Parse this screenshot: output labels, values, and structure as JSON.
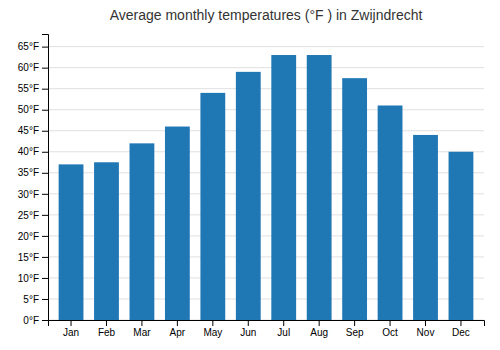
{
  "chart_data": {
    "type": "bar",
    "title": "Average monthly temperatures (°F ) in Zwijndrecht",
    "categories": [
      "Jan",
      "Feb",
      "Mar",
      "Apr",
      "May",
      "Jun",
      "Jul",
      "Aug",
      "Sep",
      "Oct",
      "Nov",
      "Dec"
    ],
    "values": [
      37,
      37.5,
      42,
      46,
      54,
      59,
      63,
      63,
      57.5,
      51,
      44,
      40
    ],
    "ylim": [
      0,
      68
    ],
    "yticks": [
      {
        "value": 0,
        "label": "0°F"
      },
      {
        "value": 5,
        "label": "5°F"
      },
      {
        "value": 10,
        "label": "10°F"
      },
      {
        "value": 15,
        "label": "15°F"
      },
      {
        "value": 20,
        "label": "20°F"
      },
      {
        "value": 25,
        "label": "25°F"
      },
      {
        "value": 30,
        "label": "30°F"
      },
      {
        "value": 35,
        "label": "35°F"
      },
      {
        "value": 40,
        "label": "40°F"
      },
      {
        "value": 45,
        "label": "45°F"
      },
      {
        "value": 50,
        "label": "50°F"
      },
      {
        "value": 55,
        "label": "55°F"
      },
      {
        "value": 60,
        "label": "60°F"
      },
      {
        "value": 65,
        "label": "65°F"
      }
    ],
    "grid": true
  }
}
